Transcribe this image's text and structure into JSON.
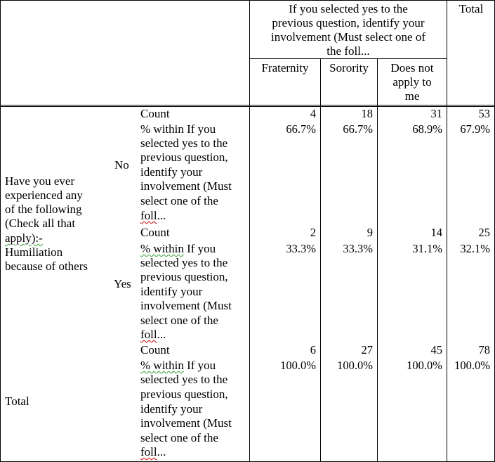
{
  "header": {
    "group_line1": "If you selected yes to the",
    "group_line2": "previous question, identify your",
    "group_line3": "involvement (Must select one of",
    "group_line4": "the foll...",
    "total": "Total",
    "col_fraternity": "Fraternity",
    "col_sorority": "Sorority",
    "col_na_line1": "Does not",
    "col_na_line2": "apply to",
    "col_na_line3": "me"
  },
  "row_question": {
    "line1": "Have you ever",
    "line2": "experienced any",
    "line3": "of the following",
    "line4": "(Check all that",
    "line5": "apply):-",
    "line6": "Humiliation",
    "line7": "because of others"
  },
  "labels": {
    "no": "No",
    "yes": "Yes",
    "total": "Total",
    "count": "Count",
    "pct_line1a": "% within",
    "pct_line1b": " If you",
    "pct_line2": "selected yes to the",
    "pct_line3": "previous question,",
    "pct_line4": "identify your",
    "pct_line5": "involvement (Must",
    "pct_line6": "select one of the",
    "pct_line7a": "foll",
    "pct_line7b": "..."
  },
  "table": {
    "columns": [
      "Fraternity",
      "Sorority",
      "Does not apply to me",
      "Total"
    ],
    "rows": [
      {
        "group": "No",
        "count": [
          "4",
          "18",
          "31",
          "53"
        ],
        "pct": [
          "66.7%",
          "66.7%",
          "68.9%",
          "67.9%"
        ]
      },
      {
        "group": "Yes",
        "count": [
          "2",
          "9",
          "14",
          "25"
        ],
        "pct": [
          "33.3%",
          "33.3%",
          "31.1%",
          "32.1%"
        ]
      },
      {
        "group": "Total",
        "count": [
          "6",
          "27",
          "45",
          "78"
        ],
        "pct": [
          "100.0%",
          "100.0%",
          "100.0%",
          "100.0%"
        ]
      }
    ]
  }
}
